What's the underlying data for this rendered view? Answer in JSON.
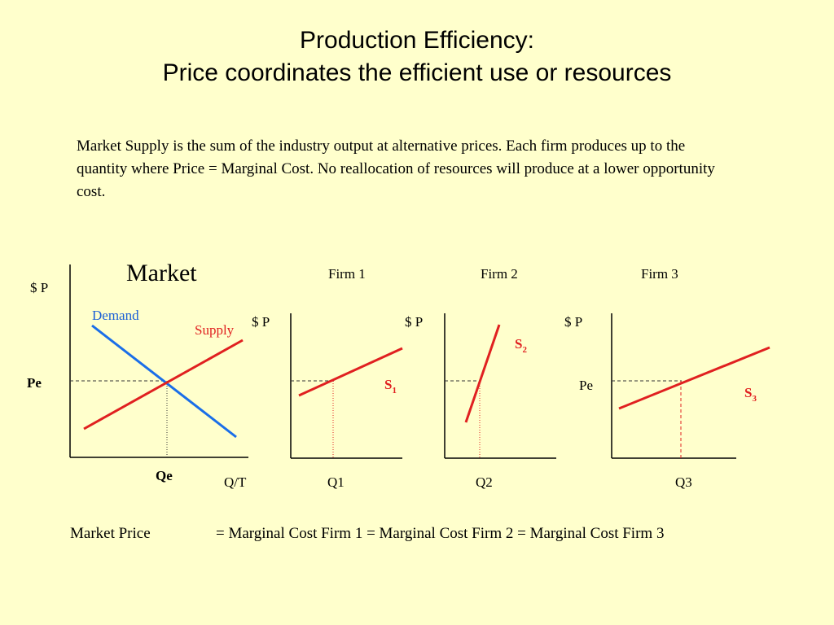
{
  "title": {
    "line1": "Production Efficiency:",
    "line2": "Price coordinates the efficient use or resources"
  },
  "description": "Market Supply is the sum of the industry output at alternative prices. Each firm produces up to the quantity where Price = Marginal Cost. No reallocation of resources will produce at a lower opportunity cost.",
  "market": {
    "label": "Market",
    "y_axis": "$ P",
    "x_axis": "Q/T",
    "demand_label": "Demand",
    "supply_label": "Supply",
    "price_label": "Pe",
    "quantity_label": "Qe"
  },
  "firms": [
    {
      "title": "Firm 1",
      "y_axis": "$ P",
      "curve": "S",
      "curve_sub": "1",
      "quantity": "Q1"
    },
    {
      "title": "Firm 2",
      "y_axis": "$ P",
      "curve": "S",
      "curve_sub": "2",
      "quantity": "Q2"
    },
    {
      "title": "Firm 3",
      "y_axis": "$ P",
      "curve": "S",
      "curve_sub": "3",
      "quantity": "Q3",
      "price_label": "Pe"
    }
  ],
  "formula": {
    "left": "Market Price",
    "right": "=  Marginal Cost Firm 1 = Marginal Cost Firm 2 = Marginal Cost Firm 3"
  },
  "colors": {
    "background": "#FFFFCC",
    "supply": "#E02020",
    "demand": "#1A6EE8",
    "demand_text": "#1A5FD6",
    "axis": "#000000",
    "guide_price": "#333333",
    "guide_quantity": "#E02020"
  }
}
